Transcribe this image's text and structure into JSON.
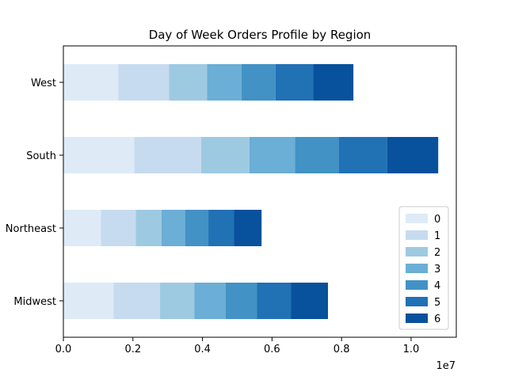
{
  "chart_data": {
    "type": "bar",
    "orientation": "horizontal",
    "stacked": true,
    "title": "Day of Week Orders Profile by Region",
    "xlabel": "",
    "ylabel": "",
    "x_scale_note": "1e7",
    "xlim": [
      0,
      11300000
    ],
    "x_ticks": [
      0,
      2000000,
      4000000,
      6000000,
      8000000,
      10000000
    ],
    "x_tick_labels": [
      "0.0",
      "0.2",
      "0.4",
      "0.6",
      "0.8",
      "1.0"
    ],
    "categories": [
      "Midwest",
      "Northeast",
      "South",
      "West"
    ],
    "legend_placement": "lower-right",
    "grid": false,
    "series": [
      {
        "name": "0",
        "color": "#deebf7",
        "values": [
          1440000,
          1080000,
          2040000,
          1580000
        ]
      },
      {
        "name": "1",
        "color": "#c6dbef",
        "values": [
          1340000,
          1000000,
          1920000,
          1460000
        ]
      },
      {
        "name": "2",
        "color": "#9ecae1",
        "values": [
          990000,
          740000,
          1390000,
          1090000
        ]
      },
      {
        "name": "3",
        "color": "#6baed6",
        "values": [
          900000,
          680000,
          1310000,
          990000
        ]
      },
      {
        "name": "4",
        "color": "#4292c6",
        "values": [
          900000,
          670000,
          1260000,
          980000
        ]
      },
      {
        "name": "5",
        "color": "#2171b5",
        "values": [
          980000,
          740000,
          1390000,
          1080000
        ]
      },
      {
        "name": "6",
        "color": "#08519c",
        "values": [
          1060000,
          790000,
          1470000,
          1160000
        ]
      }
    ]
  }
}
